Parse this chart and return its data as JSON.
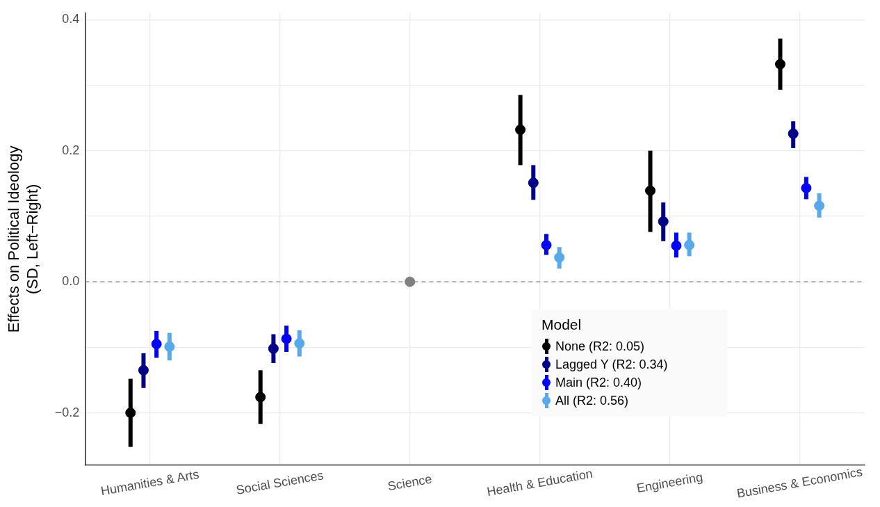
{
  "chart_data": {
    "type": "scatter",
    "ylabel": "Effects on Political Ideology\n(SD, Left−Right)",
    "legend_title": "Model",
    "categories": [
      "Humanities & Arts",
      "Social Sciences",
      "Science",
      "Health & Education",
      "Engineering",
      "Business & Economics"
    ],
    "series": [
      {
        "name": "None (R2: 0.05)",
        "color": "#000000",
        "values": [
          -0.2,
          -0.176,
          null,
          0.232,
          0.139,
          0.332
        ],
        "errors": [
          [
            -0.252,
            -0.148
          ],
          [
            -0.217,
            -0.135
          ],
          null,
          [
            0.178,
            0.285
          ],
          [
            0.076,
            0.2
          ],
          [
            0.293,
            0.371
          ]
        ]
      },
      {
        "name": "Lagged Y (R2: 0.34)",
        "color": "#00008b",
        "values": [
          -0.135,
          -0.102,
          null,
          0.151,
          0.092,
          0.226
        ],
        "errors": [
          [
            -0.162,
            -0.109
          ],
          [
            -0.124,
            -0.08
          ],
          null,
          [
            0.125,
            0.178
          ],
          [
            0.062,
            0.121
          ],
          [
            0.204,
            0.245
          ]
        ]
      },
      {
        "name": "Main (R2: 0.40)",
        "color": "#0000ff",
        "values": [
          -0.095,
          -0.087,
          null,
          0.056,
          0.055,
          0.143
        ],
        "errors": [
          [
            -0.116,
            -0.075
          ],
          [
            -0.107,
            -0.067
          ],
          null,
          [
            0.041,
            0.073
          ],
          [
            0.037,
            0.075
          ],
          [
            0.126,
            0.16
          ]
        ]
      },
      {
        "name": "All (R2: 0.56)",
        "color": "#56a9ea",
        "values": [
          -0.099,
          -0.094,
          null,
          0.037,
          0.056,
          0.116
        ],
        "errors": [
          [
            -0.12,
            -0.078
          ],
          [
            -0.114,
            -0.074
          ],
          null,
          [
            0.02,
            0.053
          ],
          [
            0.039,
            0.075
          ],
          [
            0.098,
            0.135
          ]
        ]
      },
      {
        "color": "#808080",
        "values": [
          null,
          null,
          0,
          null,
          null,
          null
        ]
      }
    ],
    "ylim": [
      -0.28,
      0.41
    ],
    "yticks": [
      {
        "value": -0.2,
        "label": "−0.2"
      },
      {
        "value": -0.1,
        "label": null
      },
      {
        "value": 0,
        "label": "0.0"
      },
      {
        "value": 0.1,
        "label": null
      },
      {
        "value": 0.2,
        "label": "0.2"
      },
      {
        "value": 0.3,
        "label": null
      },
      {
        "value": 0.4,
        "label": "0.4"
      }
    ],
    "ref_lines": [
      {
        "axis": "y",
        "value": 0,
        "color": "#808080",
        "line_style": "dashed"
      }
    ],
    "grid": true,
    "legend": "bottom right",
    "marker": "circle"
  }
}
